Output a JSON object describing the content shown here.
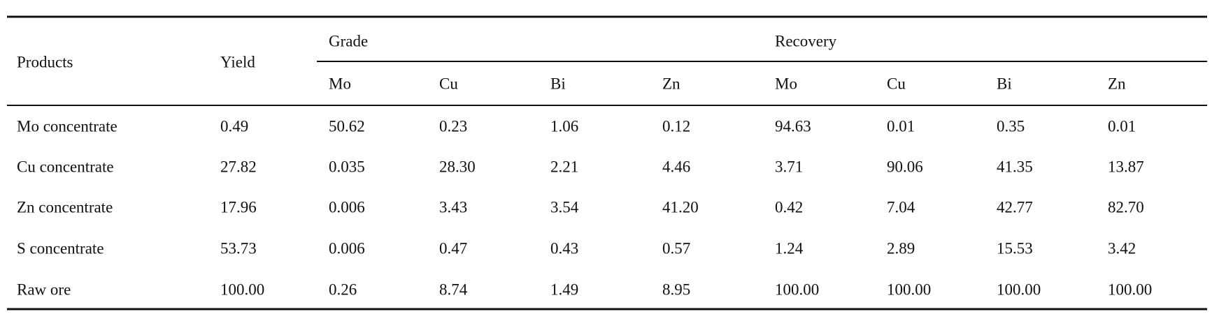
{
  "table": {
    "header": {
      "products": "Products",
      "yield": "Yield",
      "grade": "Grade",
      "recovery": "Recovery",
      "subcolumns": [
        "Mo",
        "Cu",
        "Bi",
        "Zn",
        "Mo",
        "Cu",
        "Bi",
        "Zn"
      ]
    },
    "rows": [
      [
        "Mo concentrate",
        "0.49",
        "50.62",
        "0.23",
        "1.06",
        "0.12",
        "94.63",
        "0.01",
        "0.35",
        "0.01"
      ],
      [
        "Cu concentrate",
        "27.82",
        "0.035",
        "28.30",
        "2.21",
        "4.46",
        "3.71",
        "90.06",
        "41.35",
        "13.87"
      ],
      [
        "Zn concentrate",
        "17.96",
        "0.006",
        "3.43",
        "3.54",
        "41.20",
        "0.42",
        "7.04",
        "42.77",
        "82.70"
      ],
      [
        "S concentrate",
        "53.73",
        "0.006",
        "0.47",
        "0.43",
        "0.57",
        "1.24",
        "2.89",
        "15.53",
        "3.42"
      ],
      [
        "Raw ore",
        "100.00",
        "0.26",
        "8.74",
        "1.49",
        "8.95",
        "100.00",
        "100.00",
        "100.00",
        "100.00"
      ]
    ]
  }
}
